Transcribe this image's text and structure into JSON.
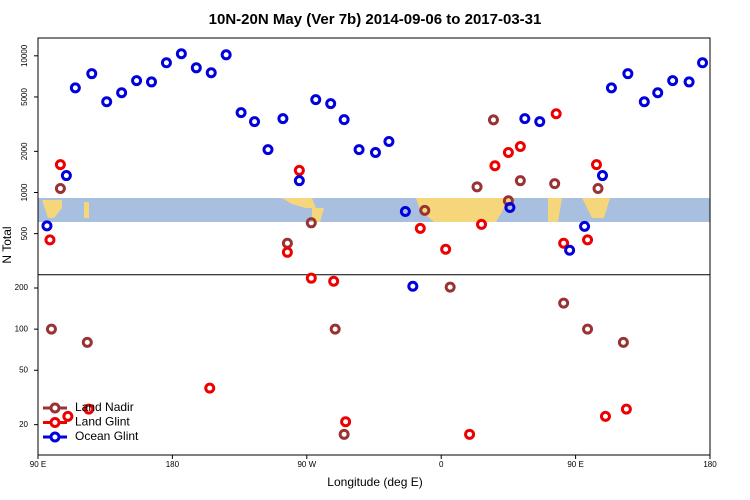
{
  "chart_data": {
    "type": "scatter",
    "title": "10N-20N May (Ver 7b)   2014-09-06 to 2017-03-31",
    "xlabel": "Longitude (deg E)",
    "ylabel": "N Total",
    "xlim": [
      90,
      540
    ],
    "ylim": [
      12,
      13500
    ],
    "log_y": true,
    "panel_split": 250,
    "legend": "bottom-left",
    "xticks": [
      {
        "value": 90,
        "label": "90 E"
      },
      180,
      {
        "value": 270,
        "label": "90 W"
      },
      {
        "value": 360,
        "label": "0"
      },
      {
        "value": 450,
        "label": "90 E"
      },
      {
        "value": 540,
        "label": "180"
      }
    ],
    "yticks": [
      20,
      50,
      100,
      200,
      500,
      1000,
      2000,
      5000,
      10000
    ],
    "series": [
      {
        "name": "Land Nadir",
        "color": "#993333",
        "x": [
          99,
          105,
          123,
          257,
          273,
          289,
          295,
          349,
          366,
          384,
          395,
          405,
          413,
          436,
          442,
          458,
          465,
          482
        ],
        "values": [
          100,
          1070,
          80,
          425,
          600,
          100,
          17,
          740,
          203,
          1100,
          3400,
          870,
          1220,
          1160,
          155,
          100,
          1070,
          80
        ]
      },
      {
        "name": "Land Glint",
        "color": "#ee0000",
        "x": [
          98,
          105,
          110,
          124,
          205,
          257,
          265,
          273,
          288,
          296,
          346,
          363,
          379,
          387,
          396,
          405,
          413,
          437,
          442,
          458,
          464,
          470,
          484
        ],
        "values": [
          450,
          1600,
          23,
          26,
          37,
          365,
          1450,
          236,
          224,
          21,
          546,
          384,
          17,
          584,
          1570,
          1960,
          2170,
          3770,
          425,
          450,
          1600,
          23,
          26
        ]
      },
      {
        "name": "Ocean Glint",
        "color": "#0000dd",
        "x": [
          96,
          109,
          115,
          126,
          136,
          146,
          156,
          166,
          176,
          186,
          196,
          206,
          216,
          226,
          235,
          244,
          254,
          265,
          276,
          286,
          295,
          305,
          316,
          325,
          336,
          341,
          406,
          416,
          426,
          446,
          456,
          468,
          474,
          485,
          496,
          505,
          515,
          526,
          535
        ],
        "values": [
          570,
          1330,
          5830,
          7400,
          4610,
          5370,
          6580,
          6440,
          8890,
          10350,
          8170,
          7520,
          10170,
          3840,
          3300,
          2060,
          3470,
          1220,
          4780,
          4470,
          3410,
          2060,
          1960,
          2360,
          726,
          206,
          777,
          3470,
          3300,
          378,
          565,
          1330,
          5830,
          7400,
          4610,
          5370,
          6580,
          6440,
          8890
        ]
      }
    ]
  }
}
